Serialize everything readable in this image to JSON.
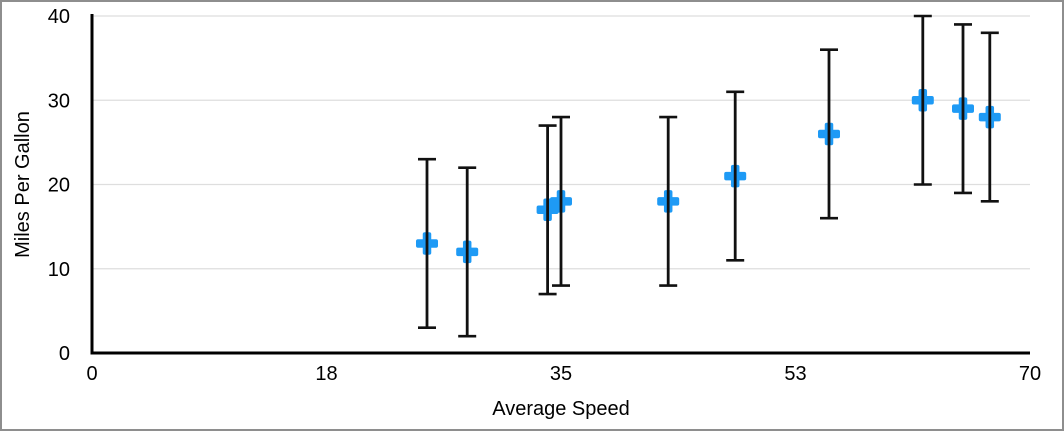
{
  "chart_data": {
    "type": "scatter",
    "title": "",
    "xlabel": "Average Speed",
    "ylabel": "Miles Per Gallon",
    "xlim": [
      0,
      70
    ],
    "ylim": [
      0,
      40
    ],
    "x_ticks": {
      "positions": [
        0,
        17.5,
        35,
        52.5,
        70
      ],
      "labels": [
        "0",
        "18",
        "35",
        "53",
        "70"
      ]
    },
    "y_ticks": {
      "positions": [
        0,
        10,
        20,
        30,
        40
      ],
      "labels": [
        "0",
        "10",
        "20",
        "30",
        "40"
      ]
    },
    "grid": "horizontal",
    "legend": "none",
    "points": [
      {
        "x": 25,
        "y": 13,
        "error": 10
      },
      {
        "x": 28,
        "y": 12,
        "error": 10
      },
      {
        "x": 34,
        "y": 17,
        "error": 10
      },
      {
        "x": 35,
        "y": 18,
        "error": 10
      },
      {
        "x": 43,
        "y": 18,
        "error": 10
      },
      {
        "x": 48,
        "y": 21,
        "error": 10
      },
      {
        "x": 55,
        "y": 26,
        "error": 10
      },
      {
        "x": 62,
        "y": 30,
        "error": 10
      },
      {
        "x": 65,
        "y": 29,
        "error": 10
      },
      {
        "x": 67,
        "y": 28,
        "error": 10
      }
    ],
    "marker": {
      "shape": "plus",
      "color": "#1E9AF5"
    },
    "colors": {
      "error_bar": "#111111",
      "axis": "#000000",
      "gridline": "#DEDEDE",
      "text": "#000000",
      "frame_border": "#8E8E8E",
      "background": "#FFFFFF"
    }
  }
}
